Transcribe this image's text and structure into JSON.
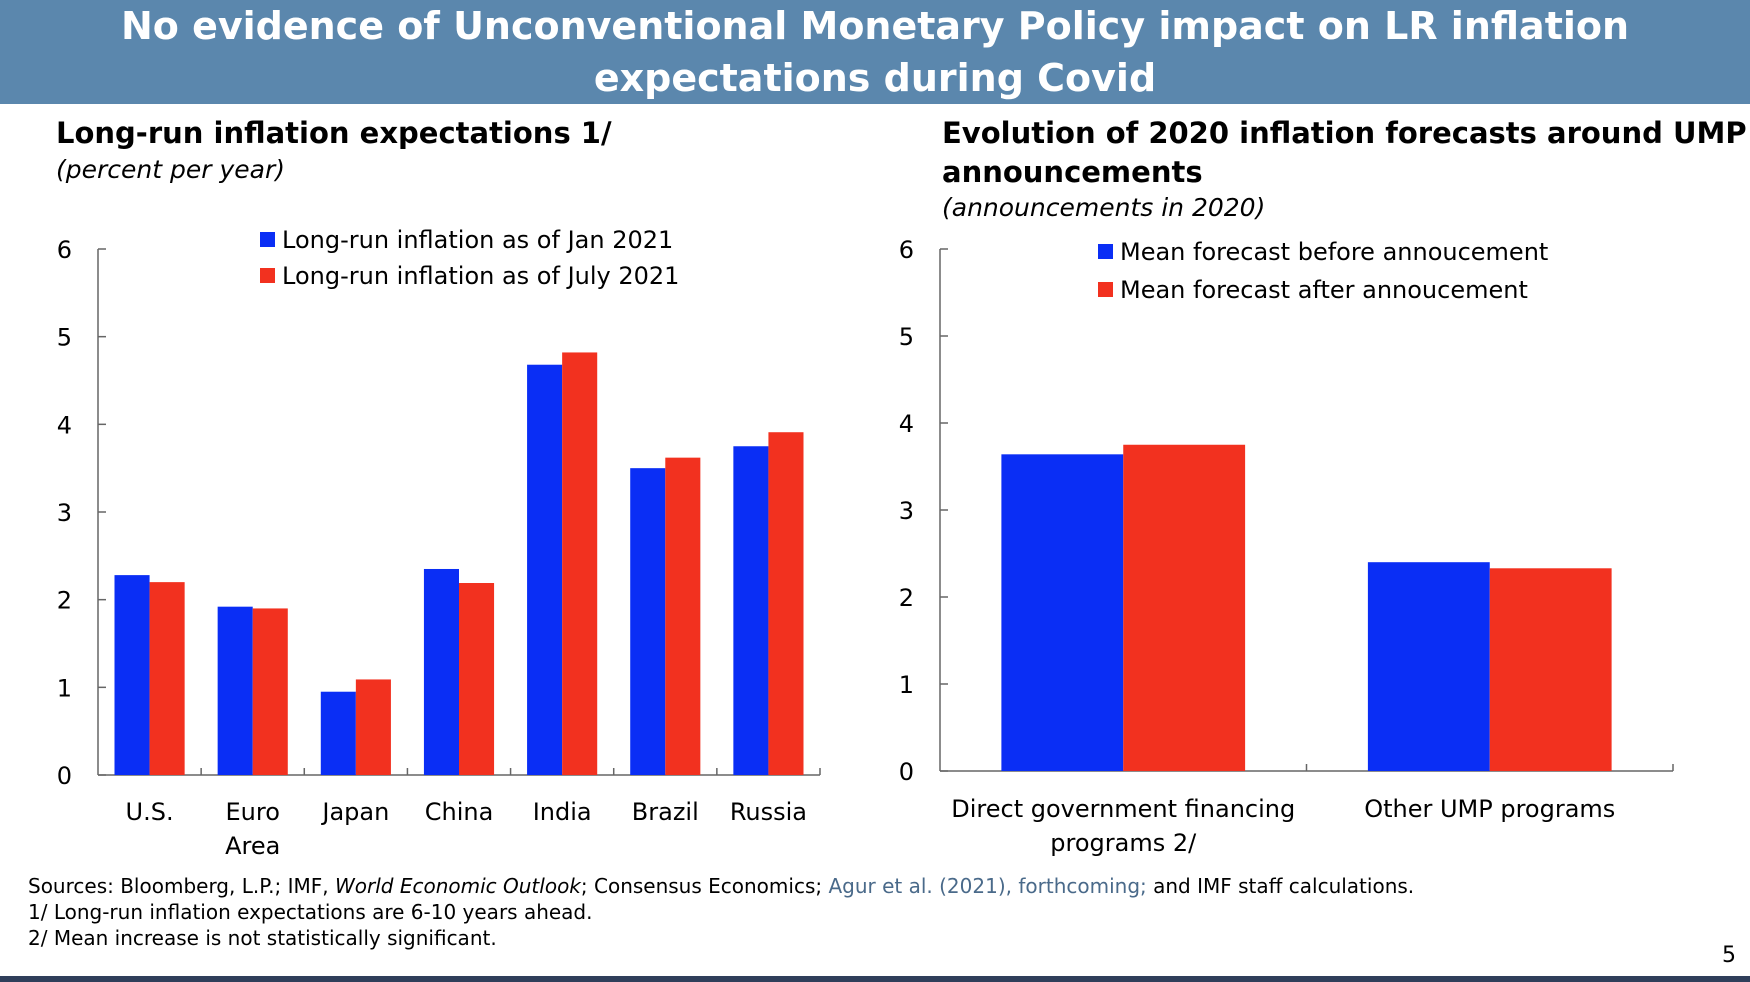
{
  "slide": {
    "title_line1": "No evidence of Unconventional Monetary Policy impact on LR inflation",
    "title_line2": "expectations during Covid",
    "page_number": "5"
  },
  "notes": {
    "sources_prefix": "Sources: Bloomberg, L.P.;  IMF, ",
    "sources_weo": "World Economic Outlook",
    "sources_mid": "; Consensus Economics; ",
    "sources_agur": "Agur et al. (2021), forthcoming;",
    "sources_end": " and IMF staff calculations.",
    "note1": "1/ Long-run inflation expectations are 6-10 years ahead.",
    "note2": "2/ Mean increase is not statistically significant."
  },
  "colors": {
    "blue": "#0a2ef5",
    "red": "#f2311f",
    "title_bg": "#5b87ad"
  },
  "chart_data": [
    {
      "type": "bar",
      "title": "Long-run inflation expectations 1/",
      "subtitle": "(percent per year)",
      "categories": [
        "U.S.",
        "Euro Area",
        "Japan",
        "China",
        "India",
        "Brazil",
        "Russia"
      ],
      "category_lines": [
        [
          "U.S."
        ],
        [
          "Euro",
          "Area"
        ],
        [
          "Japan"
        ],
        [
          "China"
        ],
        [
          "India"
        ],
        [
          "Brazil"
        ],
        [
          "Russia"
        ]
      ],
      "series": [
        {
          "name": "Long-run inflation as of Jan 2021",
          "color": "#0a2ef5",
          "values": [
            2.28,
            1.92,
            0.95,
            2.35,
            4.68,
            3.5,
            3.75
          ]
        },
        {
          "name": "Long-run inflation as of July 2021",
          "color": "#f2311f",
          "values": [
            2.2,
            1.9,
            1.09,
            2.19,
            4.82,
            3.62,
            3.91
          ]
        }
      ],
      "ylim": [
        0,
        6
      ],
      "yticks": [
        0,
        1,
        2,
        3,
        4,
        5,
        6
      ],
      "legend_position": "top",
      "grid": false
    },
    {
      "type": "bar",
      "title": "Evolution of 2020 inflation forecasts around UMP announcements",
      "title_line1": "Evolution of 2020 inflation forecasts around UMP",
      "title_line2": "announcements",
      "subtitle": "(announcements  in 2020)",
      "categories": [
        "Direct government financing programs 2/",
        "Other UMP programs"
      ],
      "category_lines": [
        [
          "Direct government financing",
          "programs 2/"
        ],
        [
          "Other UMP programs"
        ]
      ],
      "series": [
        {
          "name": "Mean forecast before annoucement",
          "color": "#0a2ef5",
          "values": [
            3.64,
            2.4
          ]
        },
        {
          "name": "Mean forecast after annoucement",
          "color": "#f2311f",
          "values": [
            3.75,
            2.33
          ]
        }
      ],
      "ylim": [
        0,
        6
      ],
      "yticks": [
        0,
        1,
        2,
        3,
        4,
        5,
        6
      ],
      "legend_position": "top",
      "grid": false
    }
  ]
}
